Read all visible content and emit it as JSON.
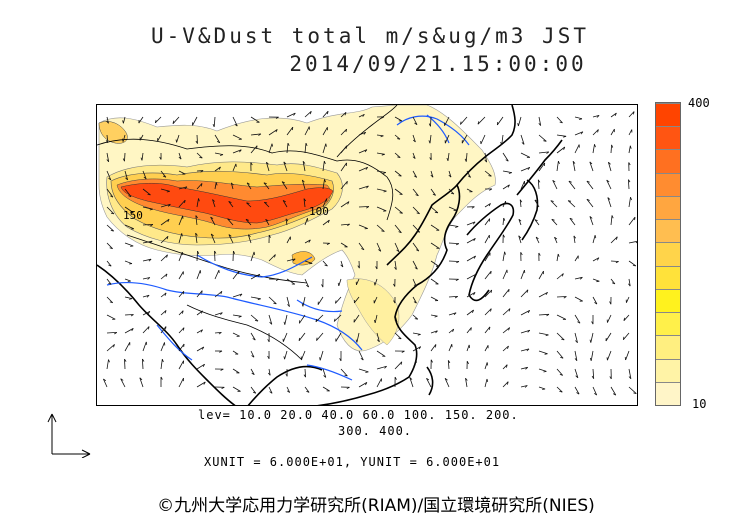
{
  "header": {
    "title_line1": "U-V&Dust total m/s&ug/m3 JST",
    "title_line2": "2014/09/21.15:00:00"
  },
  "colorbar": {
    "max_label": "400",
    "min_label": "10",
    "colors": [
      "#fff5c8",
      "#fff3a6",
      "#ffef80",
      "#fff04a",
      "#fff21e",
      "#ffe23a",
      "#ffd44a",
      "#ffbe50",
      "#ffa640",
      "#ff8c30",
      "#ff7020",
      "#ff5512",
      "#ff4400"
    ]
  },
  "contour_labels": [
    "150",
    "100"
  ],
  "levels": {
    "line1": "lev= 10.0 20.0 40.0 60.0 100. 150. 200.",
    "line2": "300. 400."
  },
  "units": "XUNIT = 6.000E+01, YUNIT = 6.000E+01",
  "credit": "©九州大学応用力学研究所(RIAM)/国立環境研究所(NIES)",
  "map": {
    "dust_fill": "#fff3a8",
    "dust_core": "#ff5a14",
    "coast": "#000000",
    "rivers": "#1e5bff",
    "vectors": "#000000"
  }
}
